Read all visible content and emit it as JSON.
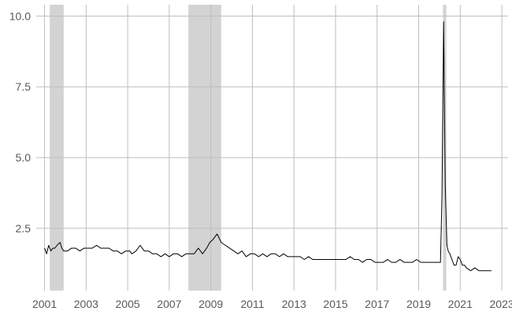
{
  "chart_data": {
    "type": "line",
    "title": "",
    "xlabel": "",
    "ylabel": "",
    "xlim": [
      2000.6,
      2023.3
    ],
    "ylim": [
      0.3,
      10.4
    ],
    "grid": true,
    "legend": "none",
    "x_ticks": [
      2001,
      2003,
      2005,
      2007,
      2009,
      2011,
      2013,
      2015,
      2017,
      2019,
      2021,
      2023
    ],
    "x_tick_labels": [
      "2001",
      "2003",
      "2005",
      "2007",
      "2009",
      "2011",
      "2013",
      "2015",
      "2017",
      "2019",
      "2021",
      "2023"
    ],
    "y_ticks": [
      2.5,
      5.0,
      7.5,
      10.0
    ],
    "y_tick_labels": [
      "2.5",
      "5.0",
      "7.5",
      "10.0"
    ],
    "recessions": [
      {
        "start": 2001.25,
        "end": 2001.92
      },
      {
        "start": 2007.92,
        "end": 2009.5
      },
      {
        "start": 2020.17,
        "end": 2020.33
      }
    ],
    "series": [
      {
        "color": "#000000",
        "x": [
          2001.0,
          2001.1,
          2001.2,
          2001.3,
          2001.4,
          2001.5,
          2001.6,
          2001.75,
          2001.83,
          2001.92,
          2002.1,
          2002.3,
          2002.5,
          2002.7,
          2002.9,
          2003.1,
          2003.3,
          2003.5,
          2003.7,
          2003.9,
          2004.1,
          2004.3,
          2004.5,
          2004.7,
          2004.9,
          2005.1,
          2005.2,
          2005.4,
          2005.6,
          2005.8,
          2006.0,
          2006.2,
          2006.4,
          2006.6,
          2006.8,
          2007.0,
          2007.2,
          2007.4,
          2007.6,
          2007.8,
          2008.0,
          2008.2,
          2008.4,
          2008.6,
          2008.8,
          2008.95,
          2009.1,
          2009.2,
          2009.3,
          2009.5,
          2009.7,
          2009.9,
          2010.1,
          2010.3,
          2010.5,
          2010.7,
          2010.9,
          2011.1,
          2011.3,
          2011.5,
          2011.7,
          2011.9,
          2012.1,
          2012.3,
          2012.5,
          2012.7,
          2012.9,
          2013.1,
          2013.3,
          2013.5,
          2013.7,
          2013.9,
          2014.1,
          2014.3,
          2014.5,
          2014.7,
          2014.9,
          2015.1,
          2015.3,
          2015.5,
          2015.7,
          2015.9,
          2016.1,
          2016.3,
          2016.5,
          2016.7,
          2016.9,
          2017.1,
          2017.3,
          2017.5,
          2017.7,
          2017.9,
          2018.1,
          2018.3,
          2018.5,
          2018.7,
          2018.9,
          2019.1,
          2019.3,
          2019.5,
          2019.7,
          2019.9,
          2020.05,
          2020.12,
          2020.2,
          2020.28,
          2020.36,
          2020.42,
          2020.5,
          2020.6,
          2020.7,
          2020.8,
          2020.9,
          2021.0,
          2021.1,
          2021.2,
          2021.3,
          2021.5,
          2021.7,
          2021.9,
          2022.1,
          2022.3,
          2022.5
        ],
        "y": [
          1.8,
          1.6,
          1.9,
          1.7,
          1.8,
          1.8,
          1.9,
          2.0,
          1.8,
          1.7,
          1.7,
          1.8,
          1.8,
          1.7,
          1.8,
          1.8,
          1.8,
          1.9,
          1.8,
          1.8,
          1.8,
          1.7,
          1.7,
          1.6,
          1.7,
          1.7,
          1.6,
          1.7,
          1.9,
          1.7,
          1.7,
          1.6,
          1.6,
          1.5,
          1.6,
          1.5,
          1.6,
          1.6,
          1.5,
          1.6,
          1.6,
          1.6,
          1.8,
          1.6,
          1.8,
          2.0,
          2.1,
          2.2,
          2.3,
          2.0,
          1.9,
          1.8,
          1.7,
          1.6,
          1.7,
          1.5,
          1.6,
          1.6,
          1.5,
          1.6,
          1.5,
          1.6,
          1.6,
          1.5,
          1.6,
          1.5,
          1.5,
          1.5,
          1.5,
          1.4,
          1.5,
          1.4,
          1.4,
          1.4,
          1.4,
          1.4,
          1.4,
          1.4,
          1.4,
          1.4,
          1.5,
          1.4,
          1.4,
          1.3,
          1.4,
          1.4,
          1.3,
          1.3,
          1.3,
          1.4,
          1.3,
          1.3,
          1.4,
          1.3,
          1.3,
          1.3,
          1.4,
          1.3,
          1.3,
          1.3,
          1.3,
          1.3,
          1.3,
          3.6,
          9.8,
          4.0,
          1.9,
          1.7,
          1.6,
          1.4,
          1.2,
          1.2,
          1.5,
          1.4,
          1.2,
          1.2,
          1.1,
          1.0,
          1.1,
          1.0,
          1.0,
          1.0,
          1.0
        ]
      }
    ]
  }
}
